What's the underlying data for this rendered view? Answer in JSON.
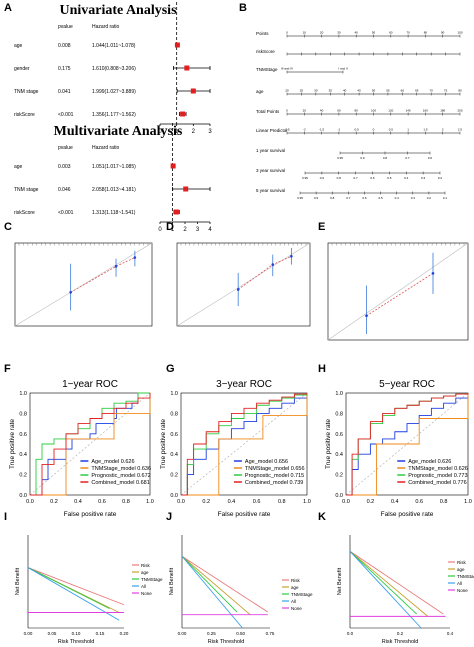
{
  "panel_letters": [
    "A",
    "B",
    "C",
    "D",
    "E",
    "F",
    "G",
    "H",
    "I",
    "J",
    "K"
  ],
  "chart_data": [
    {
      "id": "A1",
      "type": "forest",
      "title": "Univariate Analysis",
      "col_pvalue": "pvalue",
      "col_hr": "Hazard ratio",
      "rows": [
        {
          "label": "age",
          "pvalue": "0.008",
          "hr_text": "1.044(1.011~1.078)",
          "hr": 1.044,
          "lo": 1.011,
          "hi": 1.078
        },
        {
          "label": "gender",
          "pvalue": "0.175",
          "hr_text": "1.610(0.808~3.206)",
          "hr": 1.61,
          "lo": 0.808,
          "hi": 3.206
        },
        {
          "label": "TNM stage",
          "pvalue": "0.041",
          "hr_text": "1.999(1.027~3.889)",
          "hr": 1.999,
          "lo": 1.027,
          "hi": 3.889
        },
        {
          "label": "riskScore",
          "pvalue": "<0.001",
          "hr_text": "1.356(1.177~1.562)",
          "hr": 1.356,
          "lo": 1.177,
          "hi": 1.562
        }
      ],
      "xlim": [
        0,
        3
      ],
      "ticks": [
        "0",
        "1",
        "2",
        "3"
      ],
      "ref": 1
    },
    {
      "id": "A2",
      "type": "forest",
      "title": "Multivariate Analysis",
      "col_pvalue": "pvalue",
      "col_hr": "Hazard ratio",
      "rows": [
        {
          "label": "age",
          "pvalue": "0.003",
          "hr_text": "1.051(1.017~1.085)",
          "hr": 1.051,
          "lo": 1.017,
          "hi": 1.085
        },
        {
          "label": "TNM stage",
          "pvalue": "0.046",
          "hr_text": "2.058(1.013~4.181)",
          "hr": 2.058,
          "lo": 1.013,
          "hi": 4.181
        },
        {
          "label": "riskScore",
          "pvalue": "<0.001",
          "hr_text": "1.313(1.118~1.541)",
          "hr": 1.313,
          "lo": 1.118,
          "hi": 1.541
        }
      ],
      "xlim": [
        0,
        4
      ],
      "ticks": [
        "0",
        "1",
        "2",
        "3",
        "4"
      ],
      "ref": 1
    },
    {
      "id": "B",
      "type": "nomogram",
      "rows": [
        {
          "label": "Points",
          "ticks": [
            "0",
            "10",
            "20",
            "30",
            "40",
            "50",
            "60",
            "70",
            "80",
            "90",
            "100"
          ]
        },
        {
          "label": "riskScore",
          "ticks": []
        },
        {
          "label": "TNMStage",
          "ticks": [
            "III and IV",
            "I and II"
          ]
        },
        {
          "label": "age",
          "ticks": [
            "20",
            "25",
            "30",
            "35",
            "40",
            "45",
            "50",
            "55",
            "60",
            "65",
            "70",
            "75",
            "80"
          ]
        },
        {
          "label": "Total Points",
          "ticks": [
            "0",
            "20",
            "40",
            "60",
            "80",
            "100",
            "120",
            "140",
            "160",
            "180",
            "200"
          ]
        },
        {
          "label": "Linear Predictor",
          "ticks": [
            "-2.5",
            "-2",
            "-1.5",
            "-1",
            "-0.5",
            "0",
            "0.5",
            "1",
            "1.5",
            "2",
            "2.5"
          ]
        },
        {
          "label": "1 year survival",
          "ticks": [
            "0.95",
            "0.9",
            "0.8",
            "0.7",
            "0.6"
          ]
        },
        {
          "label": "3 year survival",
          "ticks": [
            "0.95",
            "0.9",
            "0.8",
            "0.7",
            "0.6",
            "0.5",
            "0.4",
            "0.3",
            "0.2"
          ]
        },
        {
          "label": "5 year survival",
          "ticks": [
            "0.95",
            "0.9",
            "0.8",
            "0.7",
            "0.6",
            "0.5",
            "0.4",
            "0.3",
            "0.2",
            "0.1"
          ]
        }
      ]
    },
    {
      "id": "C",
      "type": "calibration",
      "xlim": [
        0.84,
        1
      ],
      "ylim": [
        0.84,
        1
      ],
      "points": [
        {
          "x": 0.905,
          "y": 0.905,
          "lo": 0.87,
          "hi": 0.96
        },
        {
          "x": 0.958,
          "y": 0.955,
          "lo": 0.935,
          "hi": 0.97
        },
        {
          "x": 0.98,
          "y": 0.972,
          "lo": 0.955,
          "hi": 0.985
        }
      ]
    },
    {
      "id": "D",
      "type": "calibration",
      "xlim": [
        0.5,
        1
      ],
      "ylim": [
        0.5,
        1
      ],
      "points": [
        {
          "x": 0.73,
          "y": 0.72,
          "lo": 0.62,
          "hi": 0.82
        },
        {
          "x": 0.86,
          "y": 0.87,
          "lo": 0.8,
          "hi": 0.93
        },
        {
          "x": 0.93,
          "y": 0.92,
          "lo": 0.87,
          "hi": 0.97
        }
      ]
    },
    {
      "id": "E",
      "type": "calibration",
      "xlim": [
        0.2,
        1
      ],
      "ylim": [
        0.2,
        1
      ],
      "points": [
        {
          "x": 0.42,
          "y": 0.4,
          "lo": 0.25,
          "hi": 0.65
        },
        {
          "x": 0.8,
          "y": 0.75,
          "lo": 0.58,
          "hi": 0.92
        }
      ]
    },
    {
      "id": "F",
      "type": "line",
      "title": "1−year ROC",
      "xlabel": "False positive rate",
      "ylabel": "True positive rate",
      "ticks": [
        "0.0",
        "0.2",
        "0.4",
        "0.6",
        "0.8",
        "1.0"
      ],
      "series": [
        {
          "name": "Age_model 0.626",
          "color": "#1f3fe0",
          "x": [
            0,
            0.1,
            0.15,
            0.3,
            0.35,
            0.5,
            0.55,
            0.7,
            0.72,
            0.85,
            0.9,
            1
          ],
          "y": [
            0,
            0.15,
            0.35,
            0.45,
            0.55,
            0.6,
            0.7,
            0.75,
            0.85,
            0.9,
            1,
            1
          ]
        },
        {
          "name": "TNMStage_model 0.636",
          "color": "#f08a1a",
          "x": [
            0,
            0.3,
            0.7,
            1
          ],
          "y": [
            0,
            0.55,
            0.8,
            1
          ]
        },
        {
          "name": "Prognostic_model 0.672",
          "color": "#2ecc40",
          "x": [
            0,
            0.05,
            0.1,
            0.2,
            0.3,
            0.4,
            0.5,
            0.6,
            0.7,
            0.8,
            0.9,
            1
          ],
          "y": [
            0,
            0.35,
            0.5,
            0.55,
            0.6,
            0.65,
            0.75,
            0.85,
            0.9,
            0.92,
            1,
            1
          ]
        },
        {
          "name": "Combined_model 0.681",
          "color": "#e32020",
          "x": [
            0,
            0.1,
            0.2,
            0.3,
            0.4,
            0.5,
            0.6,
            0.7,
            0.8,
            0.9,
            1
          ],
          "y": [
            0,
            0.3,
            0.45,
            0.6,
            0.7,
            0.75,
            0.8,
            0.85,
            0.9,
            0.95,
            1
          ]
        }
      ]
    },
    {
      "id": "G",
      "type": "line",
      "title": "3−year ROC",
      "xlabel": "False positive rate",
      "ylabel": "True positive rate",
      "ticks": [
        "0.0",
        "0.2",
        "0.4",
        "0.6",
        "0.8",
        "1.0"
      ],
      "series": [
        {
          "name": "Age_model 0.656",
          "color": "#1f3fe0",
          "x": [
            0,
            0.05,
            0.1,
            0.2,
            0.3,
            0.4,
            0.5,
            0.6,
            0.7,
            0.8,
            0.9,
            1
          ],
          "y": [
            0,
            0.2,
            0.35,
            0.45,
            0.55,
            0.65,
            0.72,
            0.8,
            0.85,
            0.9,
            0.95,
            1
          ]
        },
        {
          "name": "TNMStage_model 0.656",
          "color": "#f08a1a",
          "x": [
            0,
            0.3,
            0.65,
            1
          ],
          "y": [
            0,
            0.55,
            0.78,
            1
          ]
        },
        {
          "name": "Prognostic_model 0.715",
          "color": "#2ecc40",
          "x": [
            0,
            0.05,
            0.1,
            0.2,
            0.3,
            0.4,
            0.5,
            0.6,
            0.7,
            0.8,
            0.9,
            1
          ],
          "y": [
            0,
            0.3,
            0.45,
            0.6,
            0.68,
            0.75,
            0.8,
            0.88,
            0.92,
            0.95,
            0.98,
            1
          ]
        },
        {
          "name": "Combined_model 0.739",
          "color": "#e32020",
          "x": [
            0,
            0.05,
            0.1,
            0.2,
            0.3,
            0.4,
            0.5,
            0.6,
            0.7,
            0.8,
            0.9,
            1
          ],
          "y": [
            0,
            0.35,
            0.5,
            0.62,
            0.72,
            0.8,
            0.85,
            0.9,
            0.93,
            0.96,
            0.99,
            1
          ]
        }
      ]
    },
    {
      "id": "H",
      "type": "line",
      "title": "5−year ROC",
      "xlabel": "False positive rate",
      "ylabel": "True positive rate",
      "ticks": [
        "0.0",
        "0.2",
        "0.4",
        "0.6",
        "0.8",
        "1.0"
      ],
      "series": [
        {
          "name": "Age_model 0.626",
          "color": "#1f3fe0",
          "x": [
            0,
            0.05,
            0.1,
            0.2,
            0.3,
            0.4,
            0.5,
            0.6,
            0.7,
            0.8,
            0.9,
            1
          ],
          "y": [
            0,
            0.25,
            0.4,
            0.5,
            0.55,
            0.62,
            0.7,
            0.78,
            0.85,
            0.9,
            0.95,
            1
          ]
        },
        {
          "name": "TNMStage_model 0.626",
          "color": "#f08a1a",
          "x": [
            0,
            0.25,
            0.6,
            1
          ],
          "y": [
            0,
            0.5,
            0.75,
            1
          ]
        },
        {
          "name": "Prognostic_model 0.773",
          "color": "#2ecc40",
          "x": [
            0,
            0.05,
            0.1,
            0.2,
            0.3,
            0.4,
            0.5,
            0.6,
            0.7,
            0.8,
            0.9,
            1
          ],
          "y": [
            0,
            0.35,
            0.55,
            0.7,
            0.78,
            0.85,
            0.88,
            0.92,
            0.95,
            0.97,
            0.99,
            1
          ]
        },
        {
          "name": "Combined_model 0.776",
          "color": "#e32020",
          "x": [
            0,
            0.05,
            0.1,
            0.2,
            0.3,
            0.4,
            0.5,
            0.6,
            0.7,
            0.8,
            0.9,
            1
          ],
          "y": [
            0,
            0.4,
            0.55,
            0.72,
            0.8,
            0.85,
            0.88,
            0.92,
            0.95,
            0.97,
            0.99,
            1
          ]
        }
      ]
    },
    {
      "id": "I",
      "type": "line",
      "xlabel": "Risk Threshold",
      "ylabel": "Net Benefit",
      "xticks": [
        "0.00",
        "0.05",
        "0.10",
        "0.15",
        "0.20"
      ],
      "xlim": [
        0,
        0.2
      ],
      "ylim": [
        -0.02,
        0.1
      ],
      "series": [
        {
          "name": "Risk",
          "color": "#e87a7a",
          "x": [
            0,
            0.2
          ],
          "y": [
            0.058,
            0.01
          ]
        },
        {
          "name": "age",
          "color": "#c8a030",
          "x": [
            0,
            0.19
          ],
          "y": [
            0.058,
            0.0
          ]
        },
        {
          "name": "TNMStage",
          "color": "#2ecc40",
          "x": [
            0,
            0.17
          ],
          "y": [
            0.058,
            0.005
          ]
        },
        {
          "name": "All",
          "color": "#3aa0e8",
          "x": [
            0,
            0.19
          ],
          "y": [
            0.058,
            -0.01
          ]
        },
        {
          "name": "None",
          "color": "#e040e0",
          "x": [
            0,
            0.2
          ],
          "y": [
            0,
            0
          ]
        }
      ]
    },
    {
      "id": "J",
      "type": "line",
      "xlabel": "Risk Threshold",
      "ylabel": "Net Benefit",
      "xticks": [
        "0.00",
        "0.25",
        "0.50",
        "0.75"
      ],
      "xlim": [
        0,
        0.8
      ],
      "ylim": [
        -0.05,
        0.3
      ],
      "series": [
        {
          "name": "Risk",
          "color": "#e87a7a",
          "x": [
            0,
            0.78
          ],
          "y": [
            0.22,
            0.01
          ]
        },
        {
          "name": "age",
          "color": "#c8a030",
          "x": [
            0,
            0.62
          ],
          "y": [
            0.22,
            0.0
          ]
        },
        {
          "name": "TNMStage",
          "color": "#2ecc40",
          "x": [
            0,
            0.5
          ],
          "y": [
            0.22,
            0.01
          ]
        },
        {
          "name": "All",
          "color": "#3aa0e8",
          "x": [
            0,
            0.55
          ],
          "y": [
            0.22,
            -0.05
          ]
        },
        {
          "name": "None",
          "color": "#e040e0",
          "x": [
            0,
            0.78
          ],
          "y": [
            0,
            0
          ]
        }
      ]
    },
    {
      "id": "K",
      "type": "line",
      "xlabel": "Risk Threshold",
      "ylabel": "Net Benefit",
      "xticks": [
        "0.0",
        "0.2",
        "0.4"
      ],
      "xlim": [
        0,
        0.45
      ],
      "ylim": [
        -0.05,
        0.35
      ],
      "series": [
        {
          "name": "Risk",
          "color": "#e87a7a",
          "x": [
            0,
            0.42
          ],
          "y": [
            0.28,
            0.01
          ]
        },
        {
          "name": "age",
          "color": "#c8a030",
          "x": [
            0,
            0.35
          ],
          "y": [
            0.28,
            0.0
          ]
        },
        {
          "name": "TNMStage",
          "color": "#2ecc40",
          "x": [
            0,
            0.3
          ],
          "y": [
            0.28,
            0.01
          ]
        },
        {
          "name": "All",
          "color": "#3aa0e8",
          "x": [
            0,
            0.32
          ],
          "y": [
            0.28,
            -0.05
          ]
        },
        {
          "name": "None",
          "color": "#e040e0",
          "x": [
            0,
            0.43
          ],
          "y": [
            0,
            0
          ]
        }
      ]
    }
  ]
}
